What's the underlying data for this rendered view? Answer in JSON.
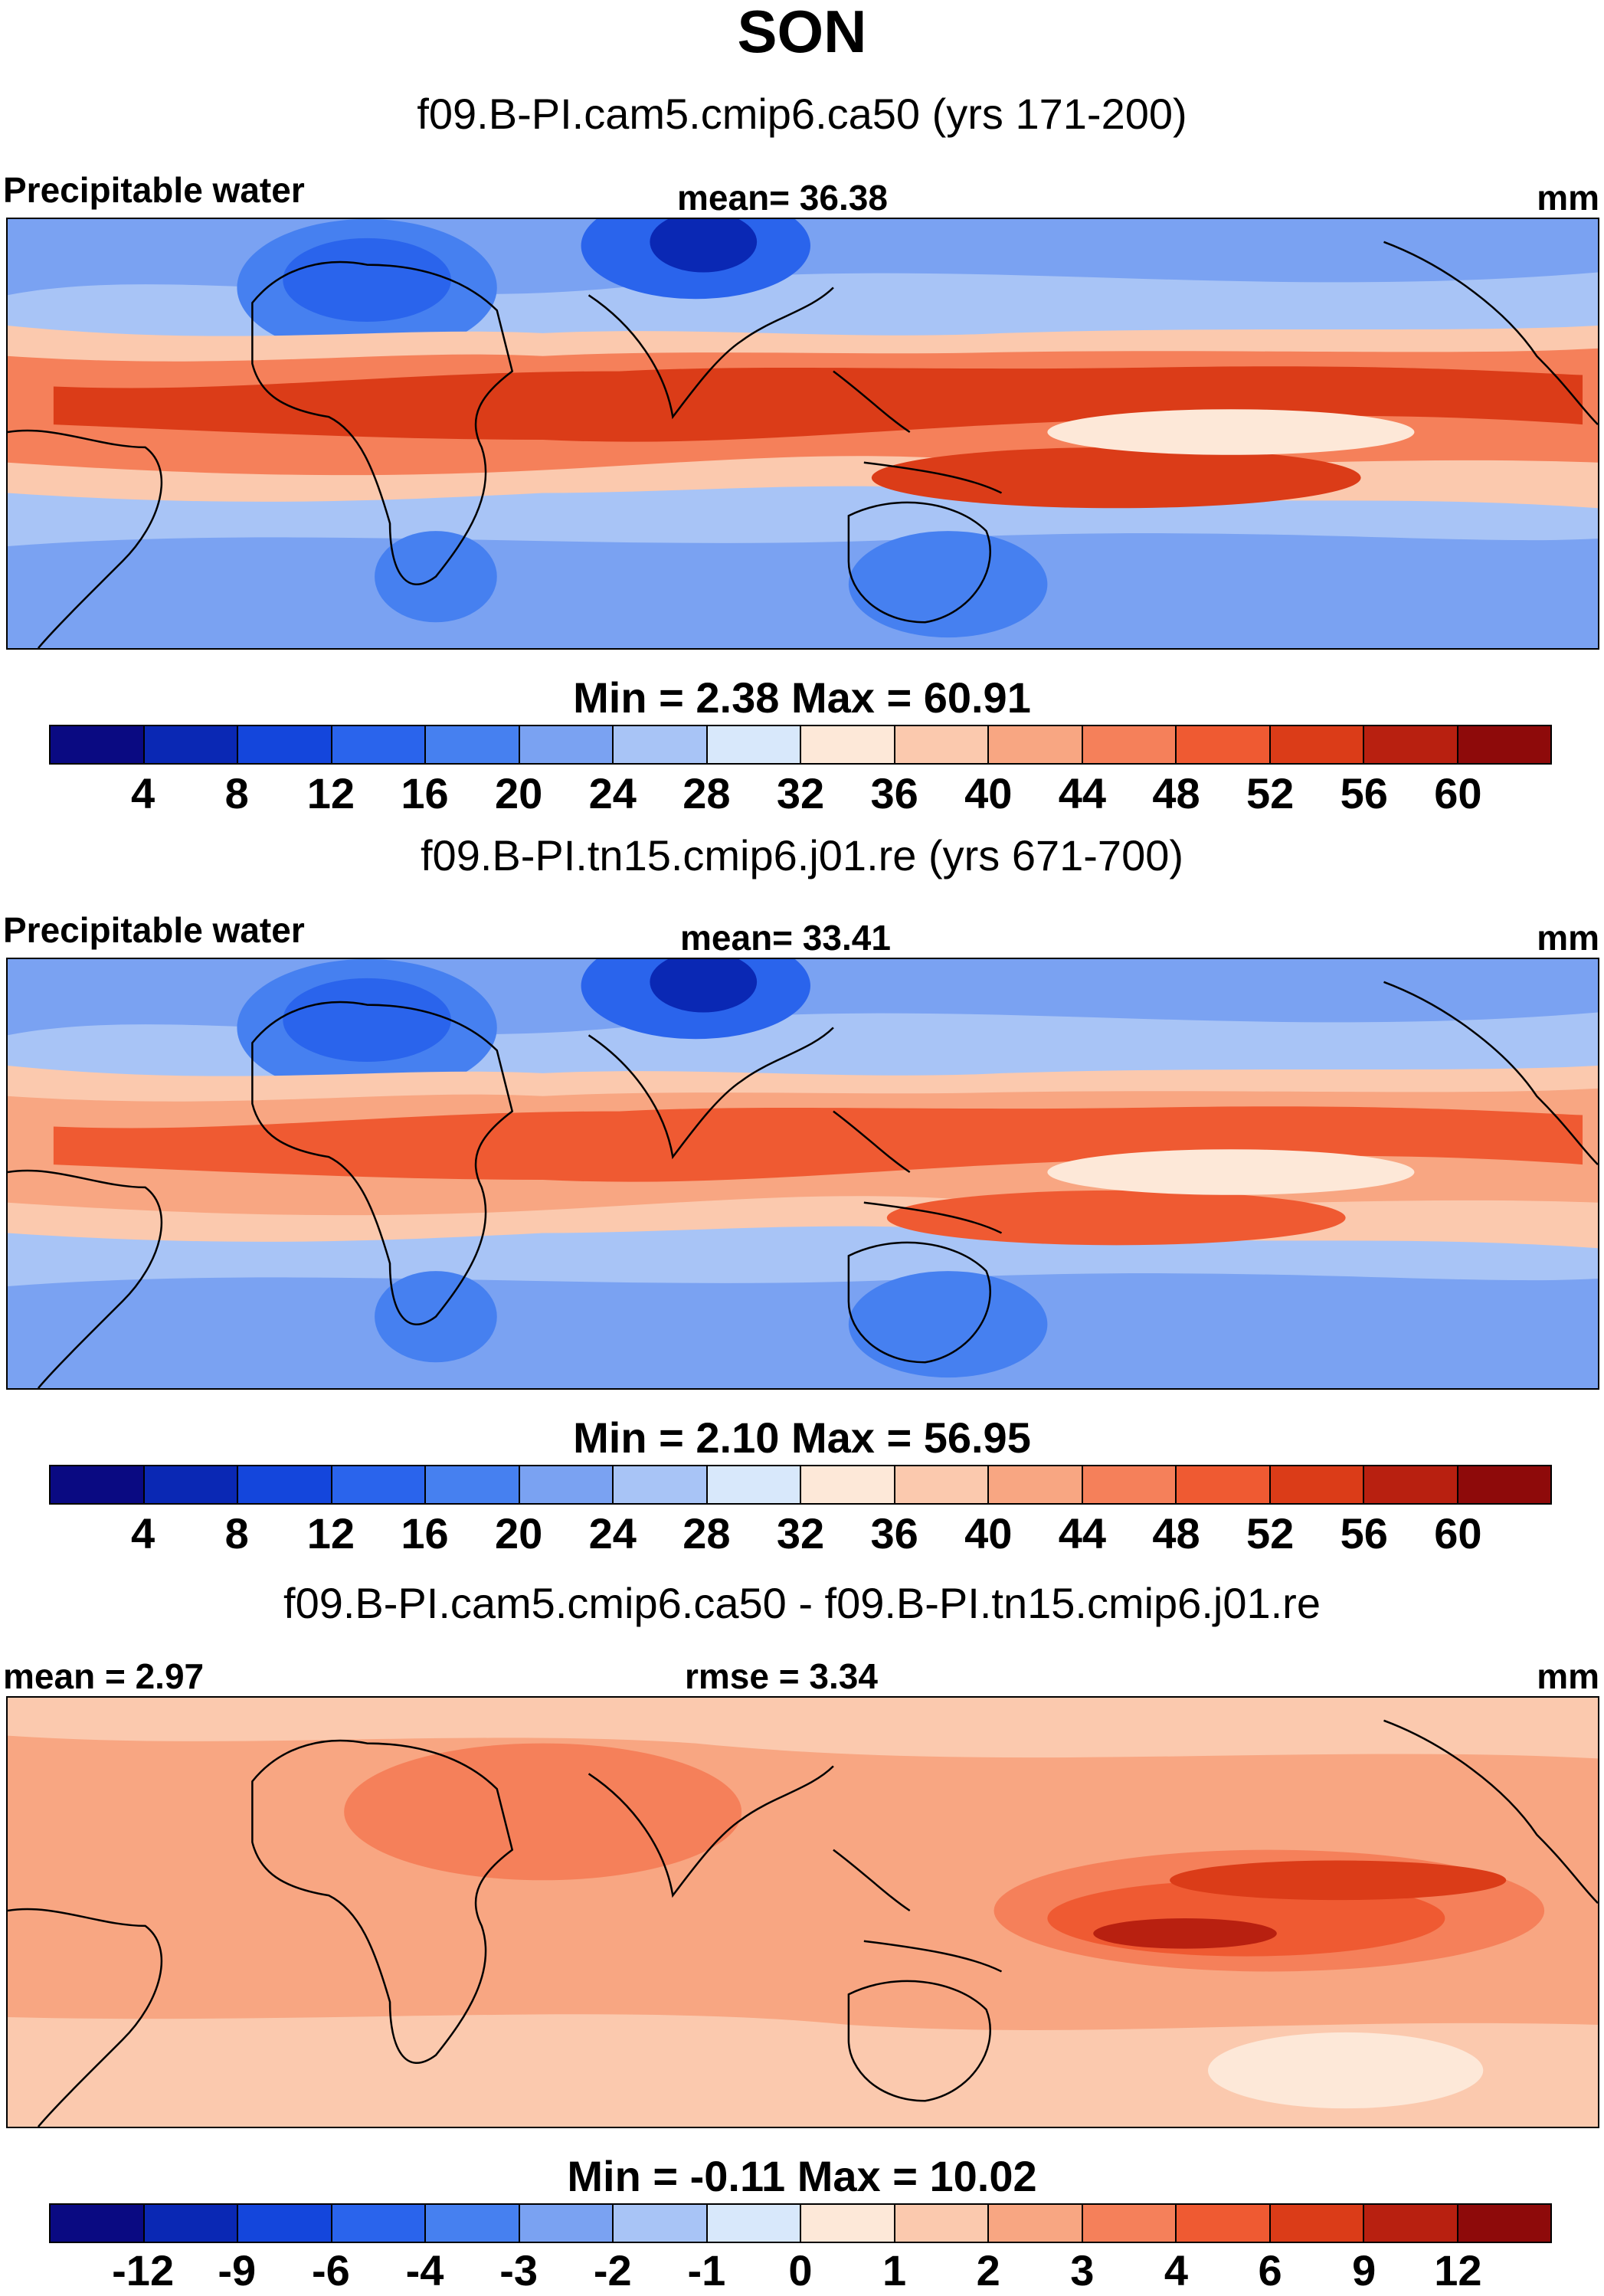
{
  "title": "SON",
  "panels": [
    {
      "case_title": "f09.B-PI.cam5.cmip6.ca50 (yrs 171-200)",
      "left_label": "Precipitable water",
      "center_label": "mean=  36.38",
      "units": "mm",
      "min_max": "Min =   2.38 Max =  60.91",
      "colorbar_ticks": [
        "4",
        "8",
        "12",
        "16",
        "20",
        "24",
        "28",
        "32",
        "36",
        "40",
        "44",
        "48",
        "52",
        "56",
        "60"
      ]
    },
    {
      "case_title": "f09.B-PI.tn15.cmip6.j01.re (yrs 671-700)",
      "left_label": "Precipitable water",
      "center_label": "mean=  33.41",
      "units": "mm",
      "min_max": "Min =   2.10 Max =  56.95",
      "colorbar_ticks": [
        "4",
        "8",
        "12",
        "16",
        "20",
        "24",
        "28",
        "32",
        "36",
        "40",
        "44",
        "48",
        "52",
        "56",
        "60"
      ]
    },
    {
      "case_title": "f09.B-PI.cam5.cmip6.ca50 - f09.B-PI.tn15.cmip6.j01.re",
      "left_label": "mean =   2.97",
      "center_label": "rmse =   3.34",
      "units": "mm",
      "min_max": "Min =  -0.11 Max =  10.02",
      "colorbar_ticks": [
        "-12",
        "-9",
        "-6",
        "-4",
        "-3",
        "-2",
        "-1",
        "0",
        "1",
        "2",
        "3",
        "4",
        "6",
        "9",
        "12"
      ]
    }
  ],
  "colorbar_colors": [
    "#0a0a82",
    "#0a28b4",
    "#1446dc",
    "#2a64ec",
    "#4680f0",
    "#7aa2f2",
    "#a8c4f6",
    "#d8e8fb",
    "#fde8d8",
    "#fbc9ae",
    "#f8a682",
    "#f5805a",
    "#ef5a32",
    "#db3c18",
    "#b82010",
    "#8e0a0a"
  ],
  "colors": {
    "land_outline": "#000000",
    "border": "#000000",
    "background": "#ffffff"
  }
}
